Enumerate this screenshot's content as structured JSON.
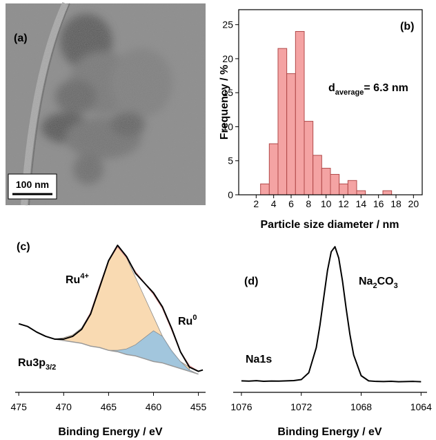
{
  "image_panel": {
    "label": "(a)",
    "scale_bar": "100 nm"
  },
  "chart_data": [
    {
      "type": "histogram",
      "label": "(b)",
      "annotation": {
        "parts": [
          "d",
          "average",
          "= 6.3 nm"
        ],
        "shift": "sub"
      },
      "xlabel": "Particle size diameter / nm",
      "ylabel": "Frequency / %",
      "bins": [
        2.5,
        3.5,
        4.5,
        5.5,
        6.5,
        7.5,
        8.5,
        9.5,
        10.5,
        11.5,
        12.5,
        13.5,
        14.5,
        15.5,
        16.5,
        17.5
      ],
      "values": [
        1.6,
        7.5,
        21.5,
        17.8,
        24,
        10.8,
        5.8,
        3.9,
        3,
        1.6,
        2.1,
        0.6,
        0,
        0,
        0.6
      ],
      "color": "#f4a3a3",
      "edgecolor": "#b04848",
      "xlim": [
        0,
        21
      ],
      "xticks": [
        2,
        4,
        6,
        8,
        10,
        12,
        14,
        16,
        18,
        20
      ],
      "ylim": [
        0,
        27.2
      ],
      "yticks": [
        0,
        5,
        10,
        15,
        20,
        25
      ]
    },
    {
      "type": "area",
      "label": "(c)",
      "annotations": [
        {
          "parts": [
            "Ru",
            "4+"
          ],
          "shift": "sup"
        },
        {
          "parts": [
            "Ru",
            "0"
          ],
          "shift": "sup"
        },
        {
          "parts": [
            "Ru3p",
            "3/2"
          ],
          "shift": "sub"
        }
      ],
      "xlabel": "Binding Energy / eV",
      "x": [
        475,
        474,
        473,
        472,
        471,
        470,
        469,
        468,
        467,
        466,
        465,
        464,
        463,
        462,
        461,
        460,
        459,
        458,
        457,
        456,
        455,
        454.5
      ],
      "series": [
        {
          "color": "#f8d3a4",
          "fill_to": 3,
          "values": [
            null,
            null,
            null,
            null,
            38,
            39,
            41,
            46,
            57,
            75,
            94,
            104,
            96,
            82,
            68,
            54,
            40,
            29,
            22,
            18,
            null,
            null
          ]
        },
        {
          "color": "#93c2e4",
          "fill_to": 3,
          "values": [
            null,
            null,
            null,
            null,
            null,
            null,
            null,
            null,
            null,
            null,
            30,
            30,
            31,
            34,
            39,
            44,
            40,
            30,
            22,
            16,
            13,
            null
          ]
        },
        {
          "color": "#e89a9a",
          "values": [
            null,
            null,
            null,
            null,
            38,
            38,
            40,
            45,
            57,
            76,
            94,
            104,
            96,
            86,
            78,
            70,
            60,
            45,
            29,
            19,
            15,
            null
          ]
        },
        {
          "color": "#999999",
          "values": [
            null,
            null,
            null,
            null,
            38,
            37,
            36,
            35,
            33,
            32,
            30,
            29,
            27,
            26,
            24,
            22,
            21,
            19,
            17,
            15,
            13,
            null
          ]
        },
        {
          "color": "#000000",
          "values": [
            49,
            47,
            43,
            40,
            38,
            38,
            40,
            45,
            56,
            75,
            94,
            105,
            97,
            85,
            78,
            71,
            61,
            46,
            29,
            18,
            15,
            16
          ]
        }
      ],
      "xlim": [
        475.4,
        454.2
      ],
      "xticks": [
        475,
        470,
        465,
        460,
        455
      ],
      "ylim": [
        0,
        110
      ]
    },
    {
      "type": "line",
      "label": "(d)",
      "annotations": [
        {
          "parts": [
            "Na",
            "2",
            "CO",
            "3"
          ],
          "shift": "sub"
        },
        {
          "parts": [
            "Na1s"
          ],
          "shift": "sub"
        }
      ],
      "xlabel": "Binding Energy / eV",
      "x": [
        1076,
        1075.5,
        1075,
        1074.5,
        1074,
        1073.5,
        1073,
        1072.5,
        1072,
        1071.5,
        1071,
        1070.75,
        1070.5,
        1070.25,
        1070,
        1069.75,
        1069.5,
        1069.25,
        1069,
        1068.75,
        1068.5,
        1068,
        1067.5,
        1067,
        1066.5,
        1066,
        1065.5,
        1065,
        1064.5,
        1064
      ],
      "series": [
        {
          "color": "#000000",
          "values": [
            8.2,
            8,
            8.3,
            7.9,
            8.1,
            8,
            8.2,
            8.4,
            9.1,
            14,
            31.9,
            48.2,
            67.7,
            87,
            100.4,
            104,
            96,
            79.7,
            59.6,
            41.2,
            26.6,
            11.9,
            8.2,
            7.8,
            7.7,
            7.9,
            7.6,
            7.7,
            7.8,
            7.6
          ]
        }
      ],
      "xlim": [
        1076.55,
        1063.6
      ],
      "xticks": [
        1076,
        1072,
        1068,
        1064
      ],
      "ylim": [
        0,
        110
      ]
    }
  ]
}
